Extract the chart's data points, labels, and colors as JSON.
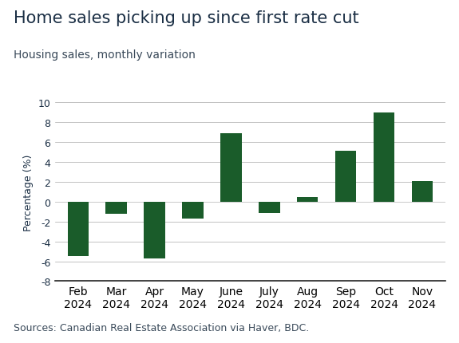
{
  "title": "Home sales picking up since first rate cut",
  "subtitle": "Housing sales, monthly variation",
  "source": "Sources: Canadian Real Estate Association via Haver, BDC.",
  "ylabel": "Percentage (%)",
  "categories": [
    "Feb\n2024",
    "Mar\n2024",
    "Apr\n2024",
    "May\n2024",
    "June\n2024",
    "July\n2024",
    "Aug\n2024",
    "Sep\n2024",
    "Oct\n2024",
    "Nov\n2024"
  ],
  "values": [
    -5.5,
    -1.2,
    -5.7,
    -1.7,
    6.9,
    -1.1,
    0.5,
    5.1,
    9.0,
    2.1
  ],
  "bar_color": "#1a5c2a",
  "ylim": [
    -8,
    10
  ],
  "yticks": [
    -8,
    -6,
    -4,
    -2,
    0,
    2,
    4,
    6,
    8,
    10
  ],
  "background_color": "#ffffff",
  "title_color": "#1a2e44",
  "subtitle_color": "#3a4a5a",
  "source_color": "#3a4a5a",
  "title_fontsize": 15,
  "subtitle_fontsize": 10,
  "source_fontsize": 9,
  "ylabel_fontsize": 9,
  "tick_fontsize": 9,
  "axis_color": "#aaaaaa",
  "bottom_spine_color": "#222222"
}
